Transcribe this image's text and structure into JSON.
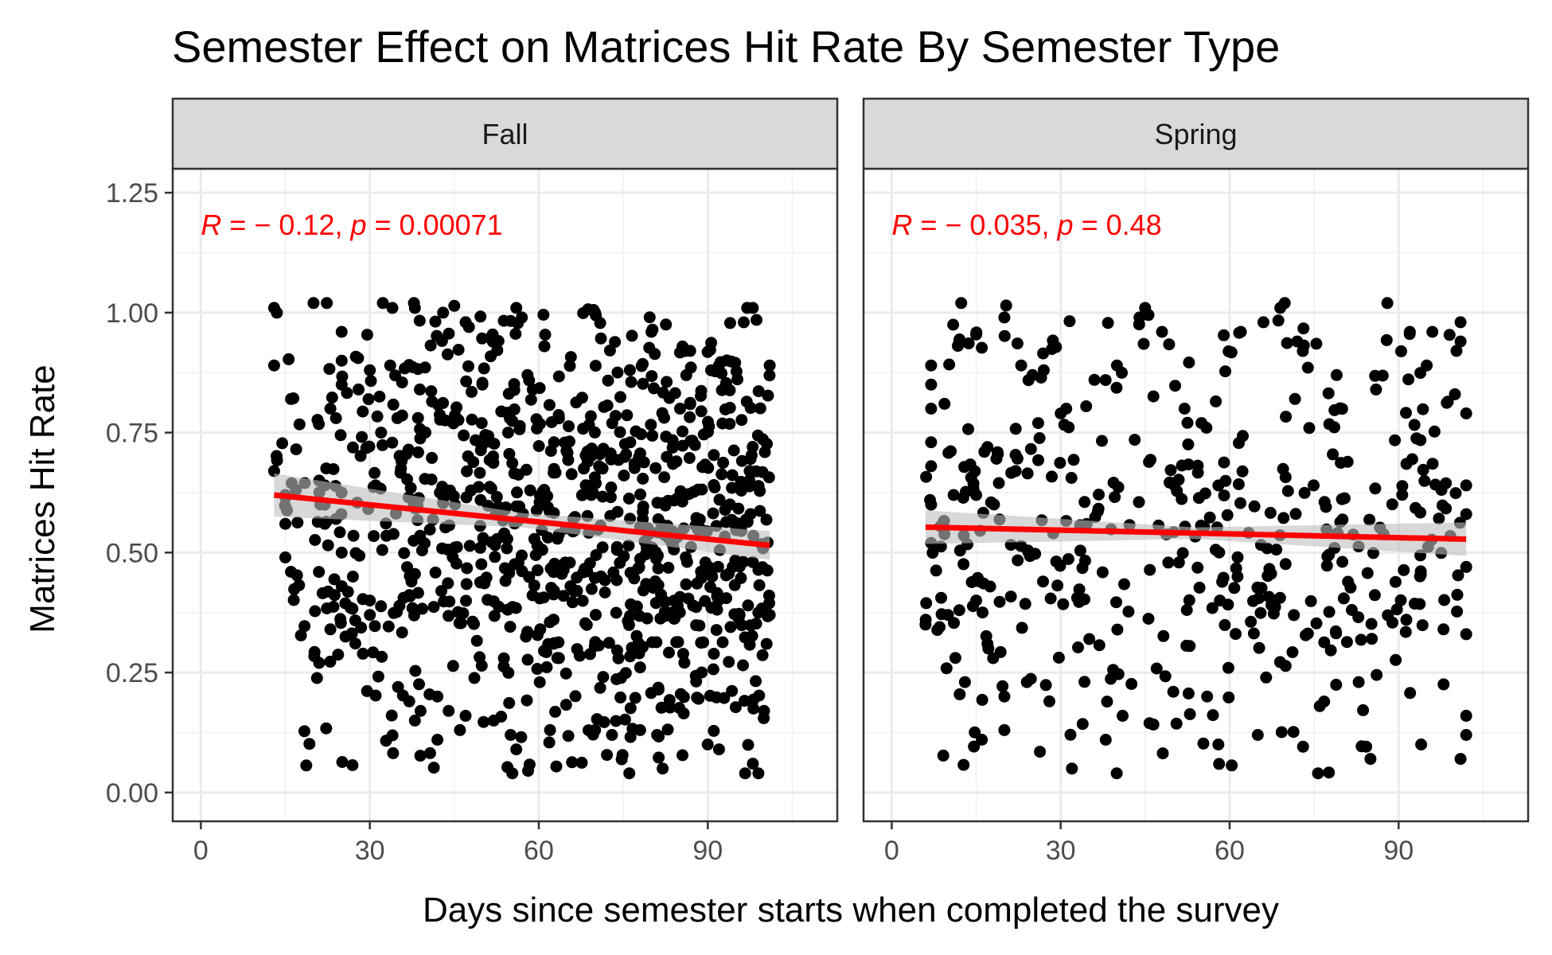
{
  "chart_data": {
    "type": "scatter",
    "title": "Semester Effect on Matrices Hit Rate By Semester Type",
    "xlabel": "Days since semester starts when completed the survey",
    "ylabel": "Matrices Hit Rate",
    "xlim": [
      -5,
      113
    ],
    "ylim": [
      -0.06,
      1.3
    ],
    "x_ticks": [
      "0",
      "30",
      "60",
      "90"
    ],
    "y_ticks": [
      "0.00",
      "0.25",
      "0.50",
      "0.75",
      "1.00",
      "1.25"
    ],
    "grid": true,
    "colors": {
      "points": "#000000",
      "fit": "#ff0000",
      "band": "#bebebe",
      "strip": "#d9d9d9"
    },
    "panels": [
      {
        "label": "Fall",
        "stat": {
          "r_sym": "R",
          "r_val": " = − 0.12, ",
          "p_sym": "p",
          "p_val": " = 0.00071"
        },
        "fit": {
          "x": [
            13,
            101
          ],
          "y": [
            0.62,
            0.515
          ],
          "se_start": 0.045,
          "se_mid": 0.015,
          "se_end": 0.03
        },
        "point_count": 900,
        "x_range": [
          13,
          101
        ],
        "seed": 7,
        "points": [
          [
            13,
            1.01
          ],
          [
            13.5,
            1.0
          ],
          [
            20,
            1.02
          ],
          [
            13,
            0.89
          ],
          [
            16,
            0.82
          ],
          [
            13,
            0.67
          ],
          [
            15,
            0.62
          ],
          [
            15,
            0.49
          ],
          [
            16,
            0.46
          ],
          [
            15,
            0.56
          ],
          [
            21,
            0.27
          ],
          [
            23,
            0.34
          ],
          [
            25,
            0.43
          ],
          [
            27,
            0.45
          ],
          [
            25,
            0.5
          ],
          [
            24,
            0.57
          ],
          [
            22,
            0.56
          ],
          [
            22,
            0.6
          ],
          [
            21,
            0.65
          ],
          [
            22,
            0.64
          ],
          [
            24,
            0.78
          ],
          [
            23,
            0.8
          ],
          [
            25,
            0.85
          ],
          [
            25,
            0.9
          ],
          [
            25,
            0.96
          ],
          [
            28,
            0.84
          ],
          [
            30,
            0.37
          ],
          [
            30,
            0.4
          ],
          [
            35,
            0.22
          ],
          [
            37,
            0.19
          ],
          [
            38,
            0.15
          ],
          [
            39,
            0.17
          ],
          [
            42,
            0.11
          ],
          [
            42,
            0.2
          ],
          [
            44,
            0.17
          ],
          [
            46,
            0.13
          ],
          [
            47,
            0.16
          ],
          [
            52,
            0.15
          ],
          [
            55,
            0.12
          ],
          [
            56,
            0.09
          ],
          [
            62,
            0.13
          ],
          [
            70,
            0.13
          ],
          [
            73,
            0.12
          ],
          [
            78,
            0.13
          ],
          [
            81,
            0.12
          ],
          [
            82,
            0.05
          ],
          [
            92,
            0.09
          ],
          [
            90,
            0.1
          ],
          [
            98,
            0.06
          ],
          [
            99,
            0.04
          ],
          [
            100,
            0.17
          ],
          [
            98,
            1.01
          ],
          [
            97,
            1.01
          ],
          [
            58,
            0.87
          ],
          [
            34,
            1.01
          ],
          [
            43,
            1.0
          ],
          [
            47,
            0.98
          ],
          [
            57,
            0.99
          ],
          [
            61,
            0.93
          ],
          [
            70,
            1.0
          ],
          [
            80,
            0.96
          ],
          [
            86,
            0.92
          ],
          [
            92,
            0.89
          ],
          [
            101,
            0.89
          ],
          [
            101,
            0.37
          ],
          [
            98,
            0.48
          ],
          [
            56,
            1.01
          ],
          [
            38,
            1.01
          ],
          [
            30,
            0.88
          ],
          [
            32,
            0.75
          ]
        ]
      },
      {
        "label": "Spring",
        "stat": {
          "r_sym": "R",
          "r_val": " = − 0.035, ",
          "p_sym": "p",
          "p_val": " = 0.48"
        },
        "fit": {
          "x": [
            6,
            102
          ],
          "y": [
            0.553,
            0.528
          ],
          "se_start": 0.035,
          "se_mid": 0.012,
          "se_end": 0.035
        },
        "point_count": 420,
        "x_range": [
          6,
          102
        ],
        "seed": 13,
        "points": [
          [
            6,
            0.35
          ],
          [
            7,
            0.89
          ],
          [
            7,
            0.85
          ],
          [
            7,
            0.8
          ],
          [
            7,
            0.73
          ],
          [
            7,
            0.68
          ],
          [
            7,
            0.52
          ],
          [
            7,
            0.6
          ],
          [
            12,
            0.94
          ],
          [
            12,
            0.38
          ],
          [
            13,
            0.23
          ],
          [
            16,
            0.11
          ],
          [
            20,
            0.13
          ],
          [
            20,
            0.99
          ],
          [
            32,
            0.05
          ],
          [
            44,
            0.99
          ],
          [
            45,
            1.01
          ],
          [
            69,
            1.01
          ],
          [
            88,
            1.02
          ],
          [
            101,
            0.98
          ],
          [
            101,
            0.94
          ],
          [
            102,
            0.79
          ],
          [
            102,
            0.64
          ],
          [
            102,
            0.58
          ],
          [
            102,
            0.47
          ],
          [
            102,
            0.33
          ],
          [
            102,
            0.16
          ],
          [
            102,
            0.12
          ],
          [
            101,
            0.07
          ],
          [
            94,
            0.1
          ],
          [
            85,
            0.07
          ],
          [
            65,
            0.12
          ],
          [
            58,
            0.1
          ],
          [
            56,
            0.2
          ],
          [
            50,
            0.21
          ],
          [
            41,
            0.16
          ],
          [
            38,
            0.11
          ],
          [
            28,
            0.19
          ],
          [
            24,
            0.23
          ],
          [
            20,
            0.2
          ],
          [
            18,
            0.28
          ],
          [
            17,
            0.31
          ],
          [
            15,
            0.4
          ],
          [
            10,
            0.37
          ],
          [
            11,
            0.62
          ],
          [
            15,
            0.62
          ],
          [
            17,
            0.72
          ],
          [
            22,
            0.67
          ],
          [
            26,
            0.77
          ],
          [
            27,
            0.88
          ],
          [
            23,
            0.89
          ],
          [
            25,
            0.87
          ],
          [
            30,
            0.79
          ],
          [
            31,
            0.8
          ],
          [
            36,
            0.86
          ],
          [
            40,
            0.89
          ],
          [
            48,
            0.96
          ],
          [
            52,
            0.8
          ],
          [
            55,
            0.77
          ],
          [
            62,
            0.96
          ],
          [
            66,
            0.98
          ],
          [
            72,
            0.94
          ],
          [
            73,
            0.92
          ],
          [
            79,
            0.87
          ],
          [
            86,
            0.84
          ],
          [
            92,
            0.96
          ],
          [
            96,
            0.96
          ],
          [
            95,
            0.89
          ],
          [
            100,
            0.83
          ],
          [
            76,
            0.18
          ]
        ]
      }
    ]
  }
}
